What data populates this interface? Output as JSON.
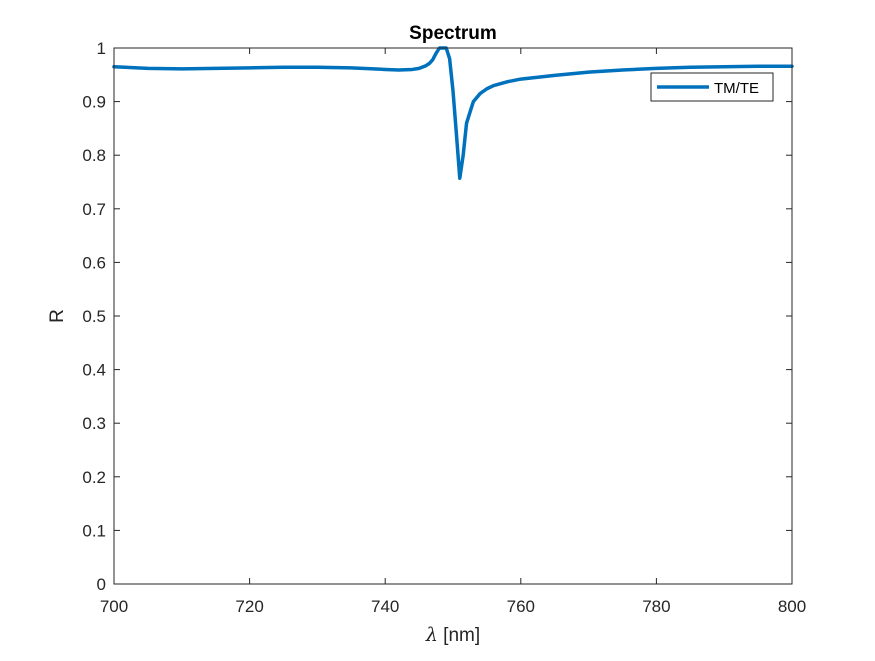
{
  "chart_data": {
    "type": "line",
    "title": "Spectrum",
    "xlabel_symbol": "λ",
    "xlabel_unit": " [nm]",
    "ylabel": "R",
    "xlim": [
      700,
      800
    ],
    "ylim": [
      0,
      1
    ],
    "xticks": [
      700,
      720,
      740,
      760,
      780,
      800
    ],
    "yticks": [
      0,
      0.1,
      0.2,
      0.3,
      0.4,
      0.5,
      0.6,
      0.7,
      0.8,
      0.9,
      1
    ],
    "grid": false,
    "legend_position": "top-right",
    "series": [
      {
        "name": "TM/TE",
        "color": "#0072BD",
        "x": [
          700,
          705,
          710,
          715,
          720,
          725,
          730,
          735,
          740,
          742,
          744,
          745,
          746,
          746.5,
          747,
          747.5,
          748,
          748.5,
          749,
          749.5,
          750,
          750.5,
          751,
          751.5,
          752,
          752.5,
          753,
          754,
          755,
          756,
          758,
          760,
          765,
          770,
          775,
          780,
          785,
          790,
          795,
          800
        ],
        "y": [
          0.965,
          0.962,
          0.961,
          0.962,
          0.963,
          0.964,
          0.964,
          0.963,
          0.96,
          0.959,
          0.96,
          0.962,
          0.967,
          0.971,
          0.978,
          0.99,
          1.0,
          1.0,
          1.0,
          0.98,
          0.92,
          0.84,
          0.757,
          0.8,
          0.86,
          0.88,
          0.9,
          0.915,
          0.924,
          0.93,
          0.937,
          0.942,
          0.949,
          0.955,
          0.959,
          0.962,
          0.964,
          0.965,
          0.966,
          0.966
        ]
      }
    ]
  }
}
